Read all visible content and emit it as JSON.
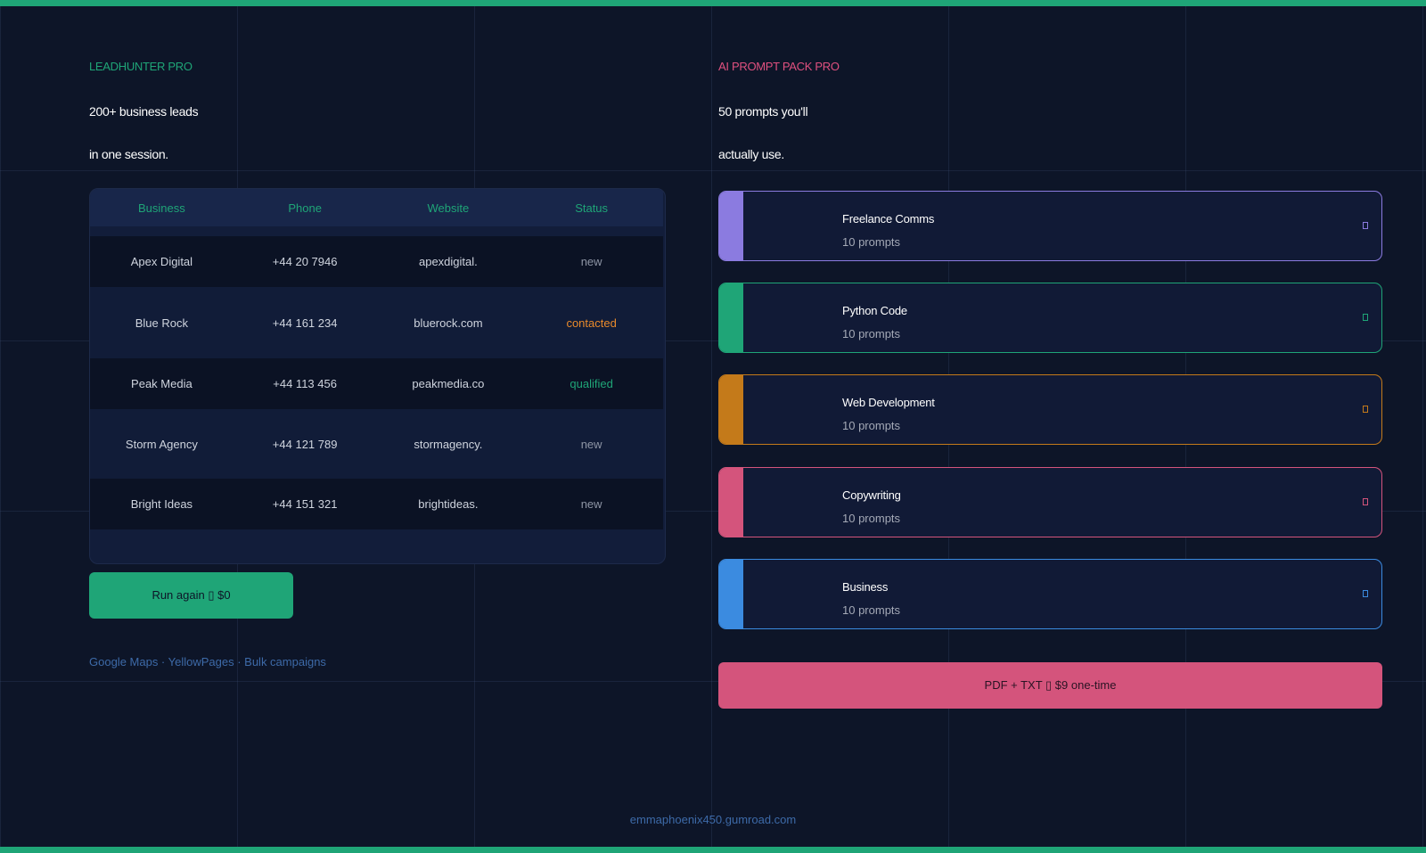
{
  "left": {
    "brand": "LEADHUNTER PRO",
    "headline_line1": "200+ business leads",
    "headline_line2": "in one session.",
    "table": {
      "columns": [
        "Business",
        "Phone",
        "Website",
        "Status"
      ],
      "rows": [
        {
          "business": "Apex Digital",
          "phone": "+44 20 7946",
          "website": "apexdigital.",
          "status": "new"
        },
        {
          "business": "Blue Rock",
          "phone": "+44 161 234",
          "website": "bluerock.com",
          "status": "contacted"
        },
        {
          "business": "Peak Media",
          "phone": "+44 113 456",
          "website": "peakmedia.co",
          "status": "qualified"
        },
        {
          "business": "Storm Agency",
          "phone": "+44 121 789",
          "website": "stormagency.",
          "status": "new"
        },
        {
          "business": "Bright Ideas",
          "phone": "+44 151 321",
          "website": "brightideas.",
          "status": "new"
        }
      ]
    },
    "run_button_label": "Run again ▯ $0",
    "sources": "Google Maps · YellowPages · Bulk campaigns"
  },
  "right": {
    "brand": "AI PROMPT PACK PRO",
    "headline_line1": "50 prompts you'll",
    "headline_line2": "actually use.",
    "packs": [
      {
        "title": "Freelance Comms",
        "count": "10 prompts",
        "color": "#8b7be0"
      },
      {
        "title": "Python Code",
        "count": "10 prompts",
        "color": "#1fa577"
      },
      {
        "title": "Web Development",
        "count": "10 prompts",
        "color": "#c47a1a"
      },
      {
        "title": "Copywriting",
        "count": "10 prompts",
        "color": "#d4547c"
      },
      {
        "title": "Business",
        "count": "10 prompts",
        "color": "#3b8be0"
      }
    ],
    "buy_button_label": "PDF + TXT ▯ $9 one-time"
  },
  "footer": {
    "link": "emmaphoenix450.gumroad.com"
  },
  "colors": {
    "background": "#0d1528",
    "accent_green": "#1fa577",
    "accent_pink": "#d4547c",
    "status_contacted": "#e98a2b",
    "status_qualified": "#1fa577"
  }
}
